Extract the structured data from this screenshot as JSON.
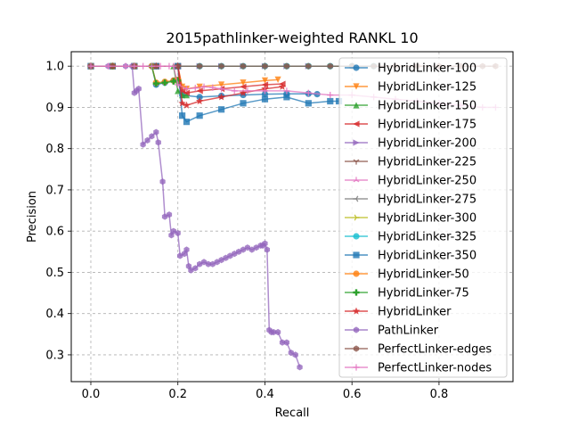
{
  "chart_data": {
    "type": "line",
    "title": "2015pathlinker-weighted RANKL 10",
    "xlabel": "Recall",
    "ylabel": "Precision",
    "xlim": [
      -0.045,
      0.97
    ],
    "ylim": [
      0.235,
      1.035
    ],
    "xticks": [
      "0.0",
      "0.2",
      "0.4",
      "0.6",
      "0.8"
    ],
    "yticks": [
      "0.3",
      "0.4",
      "0.5",
      "0.6",
      "0.7",
      "0.8",
      "0.9",
      "1.0"
    ],
    "grid": true,
    "legend_position": "right",
    "series": [
      {
        "name": "HybridLinker-100",
        "color": "#1f77b4",
        "marker": "circle",
        "x": [
          0.0,
          0.05,
          0.1,
          0.14,
          0.15,
          0.17,
          0.19,
          0.2,
          0.21,
          0.25,
          0.3,
          0.35,
          0.4,
          0.45,
          0.5,
          0.52
        ],
        "y": [
          1.0,
          1.0,
          1.0,
          1.0,
          0.955,
          0.96,
          0.965,
          0.967,
          0.93,
          0.925,
          0.928,
          0.93,
          0.932,
          0.933,
          0.933,
          0.932
        ]
      },
      {
        "name": "HybridLinker-125",
        "color": "#ff7f0e",
        "marker": "triangle-down",
        "x": [
          0.0,
          0.05,
          0.1,
          0.15,
          0.2,
          0.21,
          0.22,
          0.25,
          0.3,
          0.35,
          0.4,
          0.43
        ],
        "y": [
          1.0,
          1.0,
          1.0,
          1.0,
          1.0,
          0.95,
          0.945,
          0.95,
          0.955,
          0.96,
          0.965,
          0.967
        ]
      },
      {
        "name": "HybridLinker-150",
        "color": "#2ca02c",
        "marker": "triangle-up",
        "x": [
          0.0,
          0.05,
          0.1,
          0.15,
          0.19,
          0.2,
          0.21,
          0.22
        ],
        "y": [
          1.0,
          1.0,
          1.0,
          1.0,
          1.0,
          0.94,
          0.93,
          0.93
        ]
      },
      {
        "name": "HybridLinker-175",
        "color": "#d62728",
        "marker": "triangle-left",
        "x": [
          0.0,
          0.05,
          0.1,
          0.15,
          0.2,
          0.21,
          0.22,
          0.25,
          0.3,
          0.35,
          0.4,
          0.44
        ],
        "y": [
          1.0,
          1.0,
          1.0,
          1.0,
          1.0,
          0.94,
          0.935,
          0.94,
          0.945,
          0.95,
          0.955,
          0.957
        ]
      },
      {
        "name": "HybridLinker-200",
        "color": "#9467bd",
        "marker": "triangle-right",
        "x": [
          0.0,
          0.05,
          0.1,
          0.15,
          0.2,
          0.25,
          0.3,
          0.35,
          0.4,
          0.45,
          0.5
        ],
        "y": [
          1.0,
          1.0,
          1.0,
          1.0,
          1.0,
          1.0,
          1.0,
          1.0,
          1.0,
          1.0,
          1.0
        ]
      },
      {
        "name": "HybridLinker-225",
        "color": "#8c564b",
        "marker": "tri-down",
        "x": [
          0.0,
          0.05,
          0.1,
          0.15,
          0.2,
          0.25,
          0.3,
          0.35,
          0.4,
          0.45,
          0.5,
          0.55
        ],
        "y": [
          1.0,
          1.0,
          1.0,
          1.0,
          1.0,
          1.0,
          1.0,
          1.0,
          1.0,
          1.0,
          1.0,
          1.0
        ]
      },
      {
        "name": "HybridLinker-250",
        "color": "#e377c2",
        "marker": "tri-up",
        "x": [
          0.0,
          0.05,
          0.1,
          0.15,
          0.2,
          0.25,
          0.3,
          0.35,
          0.4,
          0.45,
          0.5,
          0.55,
          0.6
        ],
        "y": [
          1.0,
          1.0,
          1.0,
          1.0,
          1.0,
          1.0,
          1.0,
          1.0,
          1.0,
          1.0,
          1.0,
          1.0,
          1.0
        ]
      },
      {
        "name": "HybridLinker-275",
        "color": "#7f7f7f",
        "marker": "tri-left",
        "x": [
          0.0,
          0.05,
          0.1,
          0.15,
          0.2,
          0.25,
          0.3,
          0.35,
          0.4,
          0.45,
          0.5,
          0.55,
          0.6
        ],
        "y": [
          1.0,
          1.0,
          1.0,
          1.0,
          1.0,
          1.0,
          1.0,
          1.0,
          1.0,
          1.0,
          1.0,
          1.0,
          1.0
        ]
      },
      {
        "name": "HybridLinker-300",
        "color": "#bcbd22",
        "marker": "tri-right",
        "x": [
          0.0,
          0.05,
          0.1,
          0.15,
          0.2,
          0.25,
          0.3,
          0.35,
          0.4,
          0.45,
          0.5,
          0.55,
          0.6,
          0.65
        ],
        "y": [
          1.0,
          1.0,
          1.0,
          1.0,
          1.0,
          1.0,
          1.0,
          1.0,
          1.0,
          1.0,
          1.0,
          1.0,
          1.0,
          1.0
        ]
      },
      {
        "name": "HybridLinker-325",
        "color": "#17becf",
        "marker": "circle",
        "x": [
          0.0,
          0.05,
          0.1,
          0.15,
          0.2,
          0.25,
          0.3,
          0.35,
          0.4,
          0.45,
          0.5,
          0.55,
          0.6,
          0.65
        ],
        "y": [
          1.0,
          1.0,
          1.0,
          1.0,
          1.0,
          1.0,
          1.0,
          1.0,
          1.0,
          1.0,
          1.0,
          1.0,
          1.0,
          1.0
        ]
      },
      {
        "name": "HybridLinker-350",
        "color": "#1f77b4",
        "marker": "square",
        "x": [
          0.0,
          0.05,
          0.1,
          0.15,
          0.2,
          0.21,
          0.22,
          0.25,
          0.3,
          0.35,
          0.4,
          0.45,
          0.5,
          0.55,
          0.57
        ],
        "y": [
          1.0,
          1.0,
          1.0,
          1.0,
          1.0,
          0.88,
          0.865,
          0.88,
          0.895,
          0.91,
          0.92,
          0.925,
          0.91,
          0.915,
          0.915
        ]
      },
      {
        "name": "HybridLinker-50",
        "color": "#ff7f0e",
        "marker": "circle",
        "x": [
          0.0,
          0.05,
          0.1,
          0.14,
          0.15,
          0.17,
          0.19,
          0.2
        ],
        "y": [
          1.0,
          1.0,
          1.0,
          1.0,
          0.96,
          0.962,
          0.965,
          0.967
        ]
      },
      {
        "name": "HybridLinker-75",
        "color": "#2ca02c",
        "marker": "plus",
        "x": [
          0.0,
          0.05,
          0.1,
          0.14,
          0.15,
          0.17,
          0.19,
          0.2
        ],
        "y": [
          1.0,
          1.0,
          1.0,
          1.0,
          0.958,
          0.96,
          0.963,
          0.965
        ]
      },
      {
        "name": "HybridLinker",
        "color": "#d62728",
        "marker": "star",
        "x": [
          0.0,
          0.05,
          0.1,
          0.15,
          0.2,
          0.21,
          0.22,
          0.25,
          0.3,
          0.35,
          0.4,
          0.44
        ],
        "y": [
          1.0,
          1.0,
          1.0,
          1.0,
          1.0,
          0.91,
          0.905,
          0.915,
          0.925,
          0.935,
          0.945,
          0.95
        ]
      },
      {
        "name": "PathLinker",
        "color": "#9467bd",
        "marker": "hexagon",
        "x": [
          0.0,
          0.04,
          0.08,
          0.095,
          0.1,
          0.105,
          0.11,
          0.12,
          0.13,
          0.14,
          0.15,
          0.155,
          0.165,
          0.17,
          0.18,
          0.185,
          0.19,
          0.2,
          0.205,
          0.215,
          0.22,
          0.225,
          0.23,
          0.24,
          0.25,
          0.26,
          0.27,
          0.28,
          0.29,
          0.3,
          0.31,
          0.32,
          0.33,
          0.34,
          0.35,
          0.36,
          0.37,
          0.38,
          0.39,
          0.395,
          0.4,
          0.405,
          0.41,
          0.415,
          0.42,
          0.43,
          0.44,
          0.45,
          0.46,
          0.47,
          0.48
        ],
        "y": [
          1.0,
          1.0,
          1.0,
          1.0,
          0.935,
          0.94,
          0.945,
          0.81,
          0.82,
          0.83,
          0.84,
          0.815,
          0.72,
          0.635,
          0.64,
          0.59,
          0.6,
          0.595,
          0.54,
          0.545,
          0.555,
          0.515,
          0.505,
          0.51,
          0.52,
          0.525,
          0.52,
          0.52,
          0.525,
          0.53,
          0.535,
          0.54,
          0.545,
          0.55,
          0.555,
          0.56,
          0.555,
          0.56,
          0.565,
          0.565,
          0.57,
          0.555,
          0.36,
          0.355,
          0.355,
          0.355,
          0.33,
          0.33,
          0.305,
          0.3,
          0.27
        ]
      },
      {
        "name": "PerfectLinker-edges",
        "color": "#8c564b",
        "marker": "hexagon",
        "x": [
          0.0,
          0.05,
          0.1,
          0.15,
          0.2,
          0.25,
          0.3,
          0.35,
          0.4,
          0.45,
          0.5,
          0.55,
          0.6,
          0.65,
          0.7,
          0.75,
          0.8,
          0.85,
          0.9,
          0.93
        ],
        "y": [
          1.0,
          1.0,
          1.0,
          1.0,
          1.0,
          1.0,
          1.0,
          1.0,
          1.0,
          1.0,
          1.0,
          1.0,
          1.0,
          1.0,
          1.0,
          1.0,
          1.0,
          1.0,
          1.0,
          1.0
        ]
      },
      {
        "name": "PerfectLinker-nodes",
        "color": "#e377c2",
        "marker": "plus-thin",
        "x": [
          0.0,
          0.04,
          0.08,
          0.1,
          0.12,
          0.14,
          0.16,
          0.18,
          0.19,
          0.2,
          0.22,
          0.24,
          0.26,
          0.28,
          0.3,
          0.33,
          0.36,
          0.4,
          0.45,
          0.5,
          0.55,
          0.6,
          0.65,
          0.7,
          0.75,
          0.8,
          0.85,
          0.9,
          0.93
        ],
        "y": [
          1.0,
          1.0,
          1.0,
          1.0,
          1.0,
          1.0,
          1.0,
          1.0,
          1.0,
          0.955,
          0.945,
          0.947,
          0.95,
          0.948,
          0.945,
          0.94,
          0.94,
          0.94,
          0.94,
          0.935,
          0.93,
          0.93,
          0.925,
          0.92,
          0.915,
          0.91,
          0.905,
          0.9,
          0.9
        ]
      }
    ]
  }
}
